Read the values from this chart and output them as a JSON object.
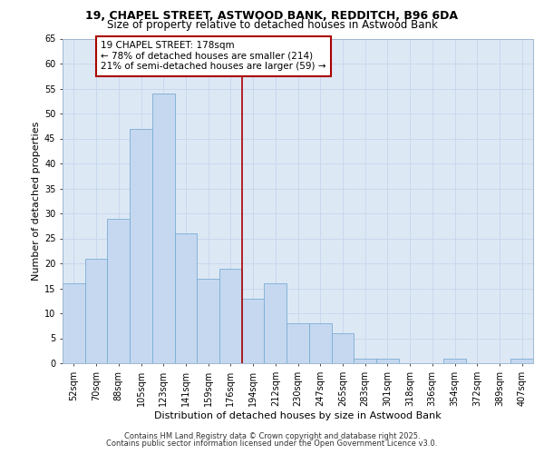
{
  "title_line1": "19, CHAPEL STREET, ASTWOOD BANK, REDDITCH, B96 6DA",
  "title_line2": "Size of property relative to detached houses in Astwood Bank",
  "xlabel": "Distribution of detached houses by size in Astwood Bank",
  "ylabel": "Number of detached properties",
  "categories": [
    "52sqm",
    "70sqm",
    "88sqm",
    "105sqm",
    "123sqm",
    "141sqm",
    "159sqm",
    "176sqm",
    "194sqm",
    "212sqm",
    "230sqm",
    "247sqm",
    "265sqm",
    "283sqm",
    "301sqm",
    "318sqm",
    "336sqm",
    "354sqm",
    "372sqm",
    "389sqm",
    "407sqm"
  ],
  "values": [
    16,
    21,
    29,
    47,
    54,
    26,
    17,
    19,
    13,
    16,
    8,
    8,
    6,
    1,
    1,
    0,
    0,
    1,
    0,
    0,
    1
  ],
  "bar_color": "#c5d8f0",
  "bar_edge_color": "#7aadd4",
  "vline_x": 7.5,
  "vline_color": "#aa0000",
  "annotation_title": "19 CHAPEL STREET: 178sqm",
  "annotation_line1": "← 78% of detached houses are smaller (214)",
  "annotation_line2": "21% of semi-detached houses are larger (59) →",
  "annotation_box_color": "#aa0000",
  "ylim": [
    0,
    65
  ],
  "yticks": [
    0,
    5,
    10,
    15,
    20,
    25,
    30,
    35,
    40,
    45,
    50,
    55,
    60,
    65
  ],
  "grid_color": "#c8d8ec",
  "background_color": "#dde8f5",
  "footer_line1": "Contains HM Land Registry data © Crown copyright and database right 2025.",
  "footer_line2": "Contains public sector information licensed under the Open Government Licence v3.0.",
  "title_fontsize": 9,
  "subtitle_fontsize": 8.5,
  "axis_label_fontsize": 8,
  "tick_fontsize": 7,
  "annotation_fontsize": 7.5,
  "footer_fontsize": 6
}
